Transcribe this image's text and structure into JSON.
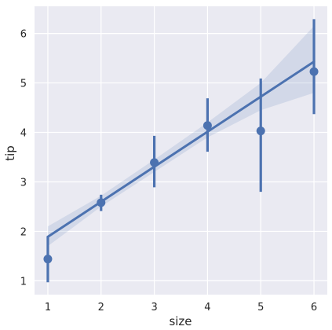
{
  "chart_data": {
    "type": "scatter",
    "xlabel": "size",
    "ylabel": "tip",
    "xlim": [
      0.75,
      6.25
    ],
    "ylim": [
      0.72,
      6.55
    ],
    "grid": true,
    "x_ticks": [
      1,
      2,
      3,
      4,
      5,
      6
    ],
    "y_ticks": [
      1,
      2,
      3,
      4,
      5,
      6
    ],
    "colors": {
      "background": "#EAEAF2",
      "grid": "#FFFFFF",
      "series": "#4C72B0",
      "band": "#4C72B0"
    },
    "series": [
      {
        "kind": "point-estimates",
        "x": [
          1,
          2,
          3,
          4,
          5,
          6
        ],
        "y": [
          1.44,
          2.58,
          3.39,
          4.14,
          4.03,
          5.23
        ],
        "ci_low": [
          0.97,
          2.41,
          2.89,
          3.61,
          2.8,
          4.37
        ],
        "ci_high": [
          1.9,
          2.74,
          3.93,
          4.69,
          5.09,
          6.29
        ]
      },
      {
        "kind": "regression-line",
        "x": [
          1,
          6
        ],
        "y": [
          1.89,
          5.43
        ]
      },
      {
        "kind": "confidence-band",
        "x": [
          1,
          2,
          3,
          4,
          5,
          6
        ],
        "lower": [
          1.7,
          2.5,
          3.2,
          3.9,
          4.45,
          4.8
        ],
        "upper": [
          2.1,
          2.72,
          3.45,
          4.2,
          5.0,
          6.15
        ]
      }
    ]
  }
}
